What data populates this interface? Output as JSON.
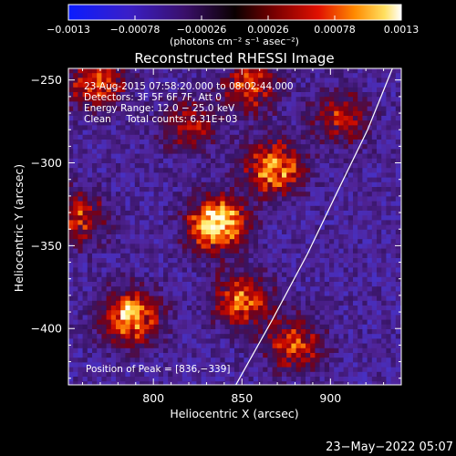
{
  "chart_data": {
    "type": "heatmap",
    "title": "Reconstructed RHESSI Image",
    "xlabel": "Heliocentric X (arcsec)",
    "ylabel": "Heliocentric Y (arcsec)",
    "xlim": [
      752,
      940
    ],
    "ylim": [
      -434,
      -243
    ],
    "xticks": [
      800,
      850,
      900
    ],
    "yticks": [
      -250,
      -300,
      -350,
      -400
    ],
    "xtick_labels": [
      "800",
      "850",
      "900"
    ],
    "ytick_labels": [
      "−250",
      "−300",
      "−350",
      "−400"
    ],
    "colorbar": {
      "range": [
        -0.0013,
        0.0013
      ],
      "ticks": [
        -0.0013,
        -0.00078,
        -0.00026,
        0.00026,
        0.00078,
        0.0013
      ],
      "tick_labels": [
        "−0.0013",
        "−0.00078",
        "−0.00026",
        "0.00026",
        "0.00078",
        "0.0013"
      ],
      "units_text": "(photons cm⁻² s⁻¹ asec⁻²)"
    },
    "info_lines": [
      "23-Aug-2015 07:58:20.000 to 08:02:44.000",
      "Detectors: 3F 5F 6F 7F, Att 0",
      "Energy Range: 12.0 − 25.0 keV",
      "Clean     Total counts: 6.31E+03"
    ],
    "peak_label": "Position of Peak = [836,−339]",
    "peak_position": [
      836,
      -339
    ],
    "limb_line": [
      [
        845,
        -437
      ],
      [
        867,
        -395
      ],
      [
        887,
        -355
      ],
      [
        905,
        -315
      ],
      [
        921,
        -280
      ],
      [
        935,
        -243
      ]
    ],
    "sources": [
      {
        "x": 836,
        "y": -337,
        "peak": 1.0
      },
      {
        "x": 868,
        "y": -303,
        "peak": 0.75
      },
      {
        "x": 787,
        "y": -393,
        "peak": 0.8
      },
      {
        "x": 850,
        "y": -383,
        "peak": 0.65
      },
      {
        "x": 768,
        "y": -252,
        "peak": 0.6
      },
      {
        "x": 855,
        "y": -253,
        "peak": 0.55
      },
      {
        "x": 757,
        "y": -333,
        "peak": 0.5
      },
      {
        "x": 880,
        "y": -410,
        "peak": 0.55
      },
      {
        "x": 906,
        "y": -273,
        "peak": 0.45
      },
      {
        "x": 820,
        "y": -278,
        "peak": 0.4
      }
    ],
    "grid": false,
    "colormap": "blue-purple-red-yellow-white"
  },
  "footer": {
    "timestamp": "23−May−2022 05:07"
  }
}
